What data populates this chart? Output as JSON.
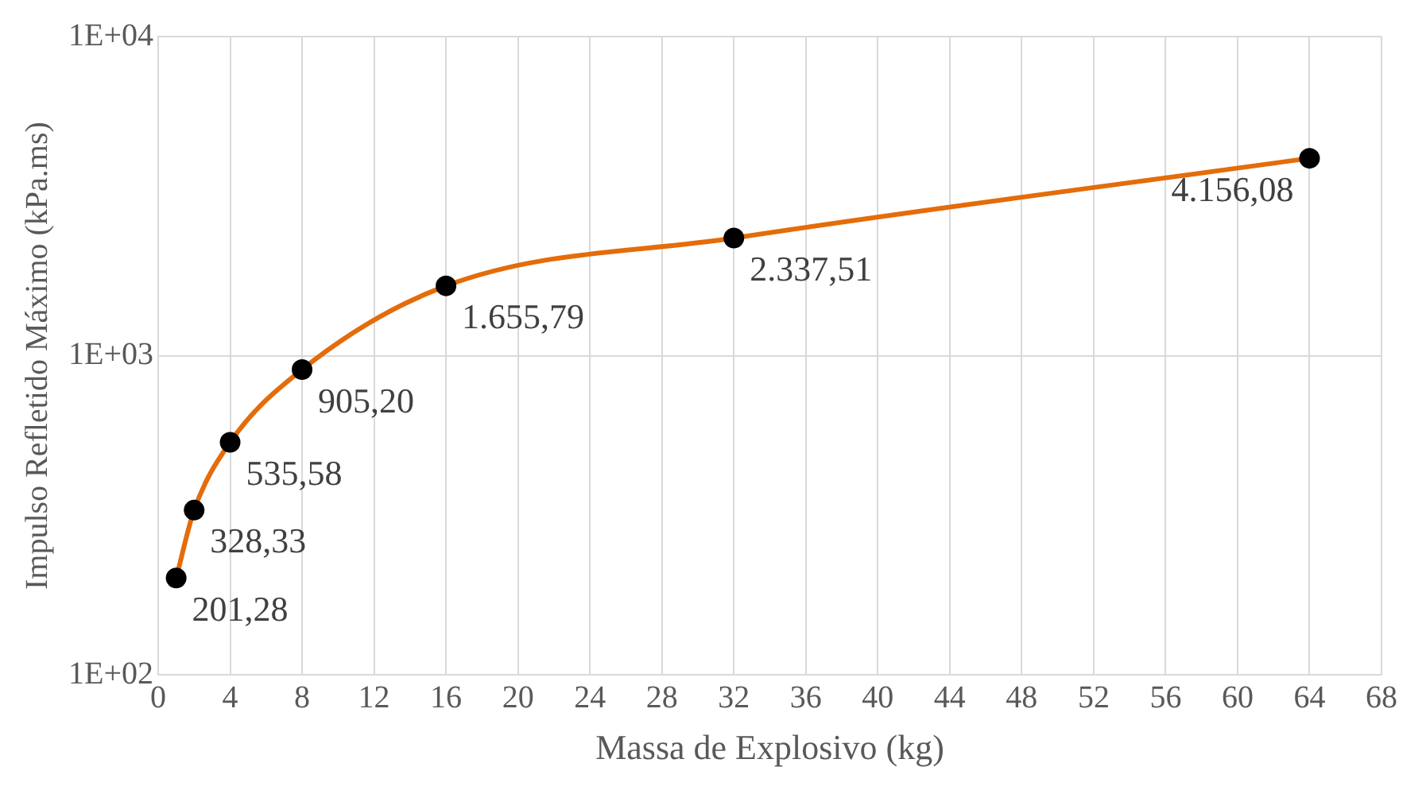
{
  "chart_data": {
    "type": "line",
    "xlabel": "Massa de Explosivo (kg)",
    "ylabel": "Impulso Refletido Máximo (kPa.ms)",
    "series": [
      {
        "color": "#e46c0a",
        "x": [
          1,
          2,
          4,
          8,
          16,
          32,
          64
        ],
        "values": [
          201.28,
          328.33,
          535.58,
          905.2,
          1655.79,
          2337.51,
          4156.08
        ],
        "value_labels": [
          "201,28",
          "328,33",
          "535,58",
          "905,20",
          "1.655,79",
          "2.337,51",
          "4.156,08"
        ]
      }
    ],
    "xlim": [
      0,
      68
    ],
    "xticks": [
      0,
      4,
      8,
      12,
      16,
      20,
      24,
      28,
      32,
      36,
      40,
      44,
      48,
      52,
      56,
      60,
      64,
      68
    ],
    "ylim": [
      100,
      10000
    ],
    "yticks": [
      {
        "value": 100,
        "label": "1E+02"
      },
      {
        "value": 1000,
        "label": "1E+03"
      },
      {
        "value": 10000,
        "label": "1E+04"
      }
    ],
    "log": "y",
    "grid": true,
    "legend": false,
    "marker": "circle",
    "line_style": "solid"
  }
}
